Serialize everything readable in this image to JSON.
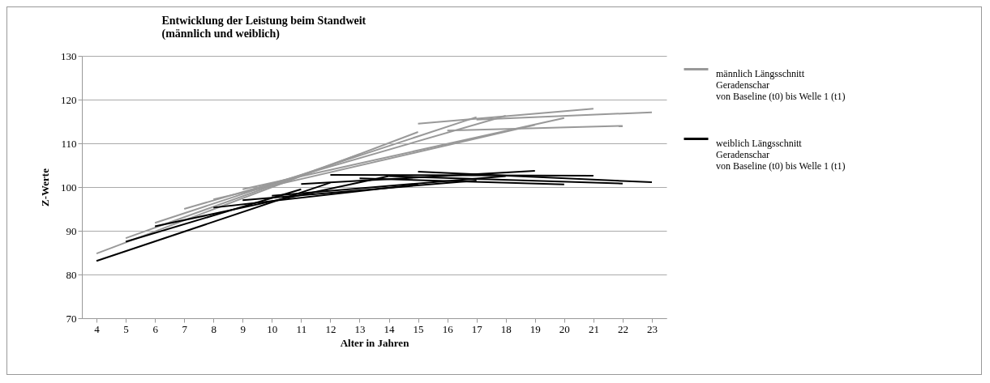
{
  "chart_data": {
    "type": "line",
    "title": "Entwicklung der Leistung beim Standweit\n(männlich und weiblich)",
    "xlabel": "Alter in Jahren",
    "ylabel": "Z-Werte",
    "xlim": [
      3.5,
      23.5
    ],
    "xticks": [
      4,
      5,
      6,
      7,
      8,
      9,
      10,
      11,
      12,
      13,
      14,
      15,
      16,
      17,
      18,
      19,
      20,
      21,
      22,
      23
    ],
    "ylim": [
      70,
      130
    ],
    "yticks": [
      70,
      80,
      90,
      100,
      110,
      120,
      130
    ],
    "grid": "y",
    "legend": "right",
    "line_style": "solid",
    "marker": "none",
    "series": [
      {
        "name": "männlich Längsschnitt\nGeradenschar\nvon Baseline (t0) bis Welle 1 (t1)",
        "color": "#999999",
        "x": [
          4,
          15,
          null,
          5,
          13,
          null,
          6,
          17,
          null,
          7,
          18,
          null,
          8,
          19,
          null,
          9,
          20,
          null,
          15,
          21,
          null,
          16,
          22,
          null,
          17,
          23
        ],
        "values": [
          84.8,
          112.6,
          null,
          88.3,
          107.5,
          null,
          91.8,
          116.0,
          null,
          95.0,
          116.3,
          null,
          97.2,
          114.2,
          null,
          99.5,
          115.8,
          null,
          114.5,
          117.9,
          null,
          112.9,
          114.0,
          null,
          115.4,
          117.1
        ]
      },
      {
        "name": "weiblich Längsschnitt\nGeradenschar\nvon Baseline (t0) bis Welle 1 (t1)",
        "color": "#000000",
        "x": [
          4,
          12,
          null,
          5,
          11,
          null,
          6,
          14,
          null,
          8,
          15,
          null,
          9,
          17,
          null,
          10,
          18,
          null,
          11,
          19,
          null,
          12,
          21,
          null,
          13,
          20,
          null,
          14,
          22,
          null,
          15,
          23
        ],
        "values": [
          83.1,
          101.0,
          null,
          87.5,
          99.5,
          null,
          91.0,
          102.5,
          null,
          95.3,
          100.6,
          null,
          97.0,
          101.5,
          null,
          98.0,
          102.5,
          null,
          100.7,
          103.7,
          null,
          102.8,
          102.6,
          null,
          102.0,
          100.6,
          null,
          102.5,
          100.8,
          null,
          103.5,
          101.1
        ]
      }
    ]
  }
}
